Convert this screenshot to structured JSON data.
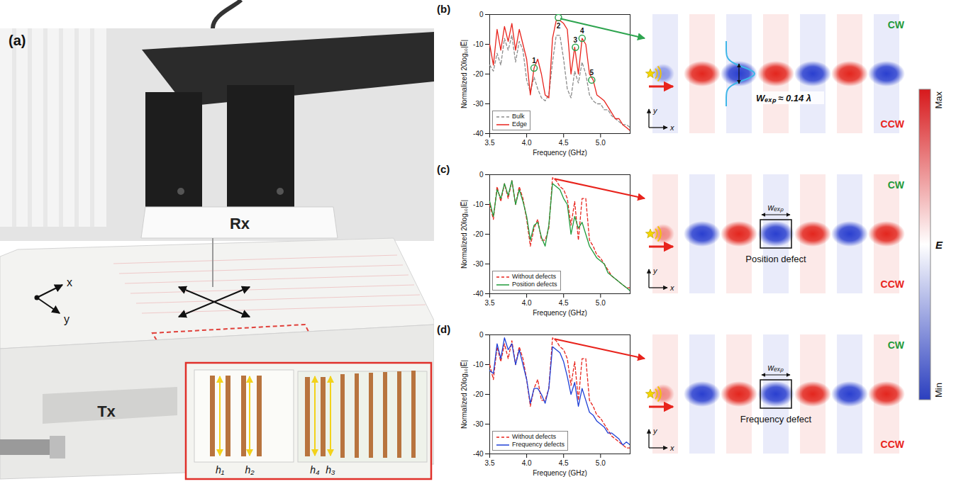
{
  "panel_labels": [
    "(a)",
    "(b)",
    "(c)",
    "(d)"
  ],
  "photo": {
    "receiver": "Rx",
    "transmitter": "Tx",
    "axes": [
      "x",
      "y"
    ],
    "inset_heights": [
      "h₁",
      "h₂",
      "h₄",
      "h₃"
    ]
  },
  "chart_data": [
    {
      "type": "line",
      "xlabel": "Frequency (GHz)",
      "ylabel": "Normalized 20log₁₀|E̅|",
      "xlim": [
        3.5,
        5.4
      ],
      "ylim": [
        -40,
        0
      ],
      "xticks": [
        3.5,
        {
          "value": 4,
          "label": "4.0"
        },
        4.5,
        {
          "value": 5,
          "label": "5.0"
        }
      ],
      "yticks": [
        -40,
        -30,
        -20,
        -10,
        0
      ],
      "legend": "lower left",
      "x": [
        3.5,
        3.55,
        3.6,
        3.65,
        3.7,
        3.75,
        3.8,
        3.85,
        3.9,
        3.95,
        4.0,
        4.05,
        4.1,
        4.15,
        4.2,
        4.25,
        4.3,
        4.35,
        4.4,
        4.45,
        4.5,
        4.55,
        4.6,
        4.65,
        4.7,
        4.75,
        4.8,
        4.85,
        4.9,
        4.95,
        5.0,
        5.05,
        5.1,
        5.15,
        5.2,
        5.25,
        5.3,
        5.35,
        5.4
      ],
      "series": [
        {
          "name": "Bulk",
          "color": "#8c8c8c",
          "line_style": "dashed",
          "values": [
            -17,
            -19,
            -13,
            -17,
            -8,
            -12,
            -7,
            -16,
            -9,
            -12,
            -22,
            -26,
            -21,
            -25,
            -28,
            -29,
            -27,
            -16,
            -7,
            -7,
            -15,
            -25,
            -28,
            -19,
            -23,
            -16,
            -20,
            -27,
            -29,
            -30,
            -30,
            -32,
            -32,
            -34,
            -35,
            -36,
            -37,
            -37,
            -38
          ]
        },
        {
          "name": "Edge",
          "color": "#e8231c",
          "line_style": "solid",
          "values": [
            -10,
            -17,
            -5,
            -12,
            -4,
            -9,
            -3,
            -12,
            -5,
            -10,
            -15,
            -27,
            -18,
            -15,
            -20,
            -27,
            -28,
            -8,
            -2,
            -2,
            -3,
            -5,
            -20,
            -11,
            -20,
            -8,
            -10,
            -20,
            -22,
            -27,
            -28,
            -29,
            -31,
            -33,
            -35,
            -35,
            -37,
            -38,
            -39
          ]
        }
      ],
      "annotations": [
        {
          "label": "1",
          "x": 4.1,
          "y": -18
        },
        {
          "label": "2",
          "x": 4.43,
          "y": -1
        },
        {
          "label": "3",
          "x": 4.66,
          "y": -11
        },
        {
          "label": "4",
          "x": 4.75,
          "y": -8
        },
        {
          "label": "5",
          "x": 4.88,
          "y": -22
        }
      ]
    },
    {
      "type": "line",
      "xlabel": "Frequency (GHz)",
      "ylabel": "Normalized 20log₁₀|E̅|",
      "xlim": [
        3.5,
        5.4
      ],
      "ylim": [
        -40,
        0
      ],
      "xticks": [
        3.5,
        {
          "value": 4,
          "label": "4.0"
        },
        4.5,
        {
          "value": 5,
          "label": "5.0"
        }
      ],
      "yticks": [
        -40,
        -30,
        -20,
        -10,
        0
      ],
      "legend": "lower left",
      "x": [
        3.5,
        3.55,
        3.6,
        3.65,
        3.7,
        3.75,
        3.8,
        3.85,
        3.9,
        3.95,
        4.0,
        4.05,
        4.1,
        4.15,
        4.2,
        4.25,
        4.3,
        4.35,
        4.4,
        4.45,
        4.5,
        4.55,
        4.6,
        4.65,
        4.7,
        4.75,
        4.8,
        4.85,
        4.9,
        4.95,
        5.0,
        5.05,
        5.1,
        5.15,
        5.2,
        5.25,
        5.3,
        5.35,
        5.4
      ],
      "series": [
        {
          "name": "Without defects",
          "color": "#e8231c",
          "line_style": "dashed",
          "values": [
            -10,
            -15,
            -4,
            -9,
            -3,
            -8,
            -2,
            -10,
            -4,
            -8,
            -15,
            -24,
            -18,
            -15,
            -22,
            -22,
            -18,
            -1,
            -2,
            -4,
            -5,
            -8,
            -17,
            -9,
            -22,
            -8,
            -8,
            -22,
            -24,
            -27,
            -28,
            -30,
            -32,
            -34,
            -35,
            -36,
            -37,
            -38,
            -38
          ]
        },
        {
          "name": "Position defects",
          "color": "#1f9a3a",
          "line_style": "solid",
          "values": [
            -9,
            -14,
            -5,
            -8,
            -3,
            -7,
            -2,
            -10,
            -5,
            -9,
            -14,
            -22,
            -17,
            -16,
            -21,
            -24,
            -17,
            -3,
            -4,
            -5,
            -8,
            -10,
            -20,
            -14,
            -18,
            -16,
            -20,
            -24,
            -26,
            -28,
            -29,
            -30,
            -33,
            -34,
            -35,
            -36,
            -37,
            -38,
            -39
          ]
        }
      ]
    },
    {
      "type": "line",
      "xlabel": "Frequency (GHz)",
      "ylabel": "Normalized 20log₁₀|E̅|",
      "xlim": [
        3.5,
        5.4
      ],
      "ylim": [
        -40,
        0
      ],
      "xticks": [
        3.5,
        {
          "value": 4,
          "label": "4.0"
        },
        4.5,
        {
          "value": 5,
          "label": "5.0"
        }
      ],
      "yticks": [
        -40,
        -30,
        -20,
        -10,
        0
      ],
      "legend": "lower left",
      "x": [
        3.5,
        3.55,
        3.6,
        3.65,
        3.7,
        3.75,
        3.8,
        3.85,
        3.9,
        3.95,
        4.0,
        4.05,
        4.1,
        4.15,
        4.2,
        4.25,
        4.3,
        4.35,
        4.4,
        4.45,
        4.5,
        4.55,
        4.6,
        4.65,
        4.7,
        4.75,
        4.8,
        4.85,
        4.9,
        4.95,
        5.0,
        5.05,
        5.1,
        5.15,
        5.2,
        5.25,
        5.3,
        5.35,
        5.4
      ],
      "series": [
        {
          "name": "Without defects",
          "color": "#e8231c",
          "line_style": "dashed",
          "values": [
            -10,
            -15,
            -4,
            -9,
            -3,
            -8,
            -2,
            -10,
            -4,
            -8,
            -15,
            -24,
            -18,
            -15,
            -22,
            -22,
            -18,
            -1,
            -2,
            -4,
            -5,
            -8,
            -17,
            -9,
            -22,
            -8,
            -8,
            -22,
            -24,
            -27,
            -28,
            -30,
            -32,
            -34,
            -35,
            -36,
            -37,
            -38,
            -38
          ]
        },
        {
          "name": "Frequency defects",
          "color": "#1f3fd6",
          "line_style": "solid",
          "values": [
            -12,
            -13,
            -3,
            -8,
            -1,
            -5,
            -3,
            -10,
            -5,
            -10,
            -15,
            -23,
            -18,
            -18,
            -20,
            -23,
            -18,
            -4,
            -5,
            -6,
            -9,
            -14,
            -20,
            -16,
            -24,
            -18,
            -22,
            -26,
            -27,
            -29,
            -30,
            -31,
            -33,
            -33,
            -34,
            -35,
            -37,
            -36,
            -37
          ]
        }
      ]
    }
  ],
  "field_maps": [
    {
      "top_label": "CW",
      "bottom_label": "CCW",
      "width_label": "Wₑₓₚ ≈ 0.14 λ",
      "axes": [
        "x",
        "y"
      ]
    },
    {
      "top_label": "CW",
      "bottom_label": "CCW",
      "width_label": "wₑₓₚ",
      "defect_label": "Position defect",
      "axes": [
        "x",
        "y"
      ]
    },
    {
      "top_label": "CW",
      "bottom_label": "CCW",
      "width_label": "wₑₓₚ",
      "defect_label": "Frequency defect",
      "axes": [
        "x",
        "y"
      ]
    }
  ],
  "colorbar": {
    "max_label": "Max",
    "min_label": "Min",
    "label": "E"
  }
}
